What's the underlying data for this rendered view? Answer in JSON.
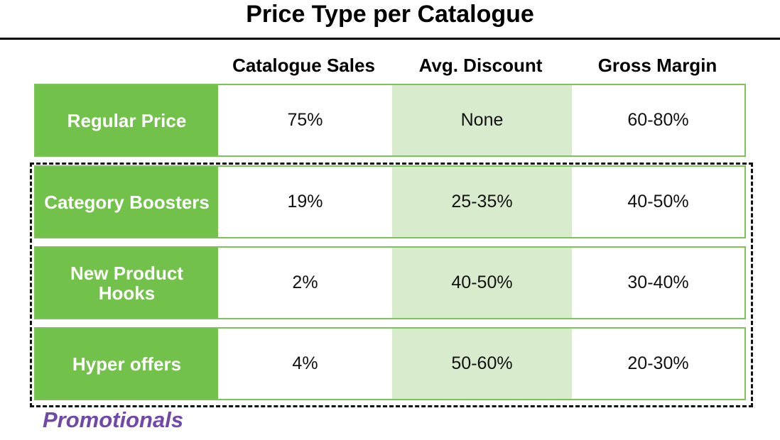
{
  "header": {
    "title": "Price Type per Catalogue"
  },
  "table": {
    "columns": [
      "Catalogue Sales",
      "Avg. Discount",
      "Gross Margin"
    ],
    "rows": [
      [
        "Regular Price",
        "75%",
        "None",
        "60-80%"
      ],
      [
        "Category Boosters",
        "19%",
        "25-35%",
        "40-50%"
      ],
      [
        "New Product Hooks",
        "2%",
        "40-50%",
        "30-40%"
      ],
      [
        "Hyper offers",
        "4%",
        "50-60%",
        "20-30%"
      ]
    ]
  },
  "group_label": "Promotionals"
}
